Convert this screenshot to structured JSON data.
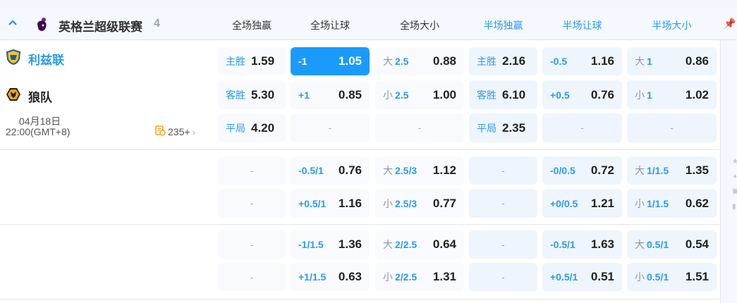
{
  "league": {
    "name": "英格兰超级联赛",
    "count": "4",
    "icon": "premier-league-lion-icon"
  },
  "columns": [
    {
      "label": "全场独赢",
      "group": "full"
    },
    {
      "label": "全场让球",
      "group": "full"
    },
    {
      "label": "全场大小",
      "group": "full"
    },
    {
      "label": "半场独赢",
      "group": "half"
    },
    {
      "label": "半场让球",
      "group": "half"
    },
    {
      "label": "半场大小",
      "group": "half"
    }
  ],
  "match": {
    "home": {
      "name": "利兹联",
      "icon": "leeds-crest-icon"
    },
    "away": {
      "name": "狼队",
      "icon": "wolves-crest-icon"
    },
    "date": "04月18日",
    "time": "22:00(GMT+8)",
    "more_markets": "235+"
  },
  "colors": {
    "accent": "#1a9bfc",
    "half_cell": "#eef5fd",
    "full_cell": "#f8fafe"
  },
  "rows": [
    [
      {
        "label": "主胜",
        "odds": "1.59"
      },
      {
        "handicap": "-1",
        "odds": "1.05",
        "selected": true
      },
      {
        "prefix": "大",
        "line": "2.5",
        "odds": "0.88"
      },
      {
        "label": "主胜",
        "odds": "2.16"
      },
      {
        "handicap": "-0.5",
        "odds": "1.16"
      },
      {
        "prefix": "大",
        "line": "1",
        "odds": "0.86"
      }
    ],
    [
      {
        "label": "客胜",
        "odds": "5.30"
      },
      {
        "handicap": "+1",
        "odds": "0.85"
      },
      {
        "prefix": "小",
        "line": "2.5",
        "odds": "1.00"
      },
      {
        "label": "客胜",
        "odds": "6.10"
      },
      {
        "handicap": "+0.5",
        "odds": "0.76"
      },
      {
        "prefix": "小",
        "line": "1",
        "odds": "1.02"
      }
    ],
    [
      {
        "label": "平局",
        "odds": "4.20"
      },
      {
        "empty": "-"
      },
      {
        "empty": "-"
      },
      {
        "label": "平局",
        "odds": "2.35"
      },
      {
        "empty": "-"
      },
      {
        "empty": "-"
      }
    ],
    [
      {
        "empty": "-"
      },
      {
        "handicap": "-0.5/1",
        "odds": "0.76"
      },
      {
        "prefix": "大",
        "line": "2.5/3",
        "odds": "1.12"
      },
      {
        "empty": "-"
      },
      {
        "handicap": "-0/0.5",
        "odds": "0.72"
      },
      {
        "prefix": "大",
        "line": "1/1.5",
        "odds": "1.35"
      }
    ],
    [
      {
        "empty": "-"
      },
      {
        "handicap": "+0.5/1",
        "odds": "1.16"
      },
      {
        "prefix": "小",
        "line": "2.5/3",
        "odds": "0.77"
      },
      {
        "empty": "-"
      },
      {
        "handicap": "+0/0.5",
        "odds": "1.21"
      },
      {
        "prefix": "小",
        "line": "1/1.5",
        "odds": "0.62"
      }
    ],
    [
      {
        "empty": "-"
      },
      {
        "handicap": "-1/1.5",
        "odds": "1.36"
      },
      {
        "prefix": "大",
        "line": "2/2.5",
        "odds": "0.64"
      },
      {
        "empty": "-"
      },
      {
        "handicap": "-0.5/1",
        "odds": "1.63"
      },
      {
        "prefix": "大",
        "line": "0.5/1",
        "odds": "0.54"
      }
    ],
    [
      {
        "empty": "-"
      },
      {
        "handicap": "+1/1.5",
        "odds": "0.63"
      },
      {
        "prefix": "小",
        "line": "2/2.5",
        "odds": "1.31"
      },
      {
        "empty": "-"
      },
      {
        "handicap": "+0.5/1",
        "odds": "0.51"
      },
      {
        "prefix": "小",
        "line": "0.5/1",
        "odds": "1.51"
      }
    ]
  ]
}
